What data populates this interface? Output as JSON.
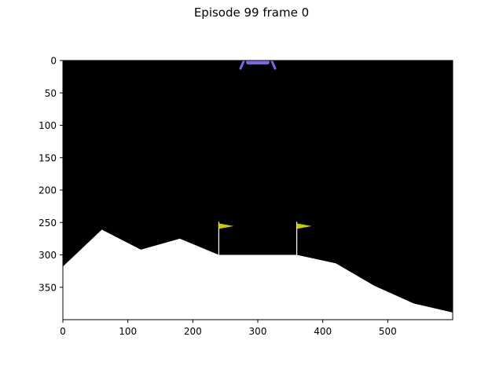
{
  "title": "Episode 99 frame 0",
  "axes": {
    "xlim": [
      0,
      600
    ],
    "ylim": [
      400,
      0
    ],
    "x_ticks": [
      0,
      100,
      200,
      300,
      400,
      500
    ],
    "y_ticks": [
      0,
      50,
      100,
      150,
      200,
      250,
      300,
      350
    ]
  },
  "scene": {
    "sky_color": "#000000",
    "terrain_color": "#ffffff",
    "flag_color": "#cccc00",
    "pole_color": "#ffffff",
    "lander_color": "#8066e6",
    "terrain_points": [
      [
        0,
        318
      ],
      [
        60,
        261
      ],
      [
        120,
        292
      ],
      [
        180,
        275
      ],
      [
        240,
        300
      ],
      [
        360,
        300
      ],
      [
        420,
        313
      ],
      [
        480,
        348
      ],
      [
        540,
        375
      ],
      [
        600,
        389
      ]
    ],
    "flags": [
      {
        "x": 240,
        "pole_top": 249,
        "pole_bottom": 300
      },
      {
        "x": 360,
        "pole_top": 249,
        "pole_bottom": 300
      }
    ],
    "lander": {
      "x": 300,
      "y": 5
    }
  }
}
